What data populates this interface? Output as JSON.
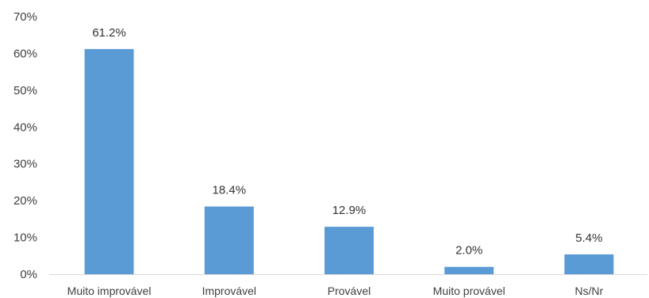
{
  "chart_data": {
    "type": "bar",
    "categories": [
      "Muito improvável",
      "Improvável",
      "Provável",
      "Muito provável",
      "Ns/Nr"
    ],
    "values": [
      61.2,
      18.4,
      12.9,
      2.0,
      5.4
    ],
    "data_labels": [
      "61.2%",
      "18.4%",
      "12.9%",
      "2.0%",
      "5.4%"
    ],
    "y_ticks": [
      "0%",
      "10%",
      "20%",
      "30%",
      "40%",
      "50%",
      "60%",
      "70%"
    ],
    "y_tick_values": [
      0,
      10,
      20,
      30,
      40,
      50,
      60,
      70
    ],
    "ylim": [
      0,
      70
    ],
    "grid": false,
    "bar_color": "#5b9bd5"
  }
}
